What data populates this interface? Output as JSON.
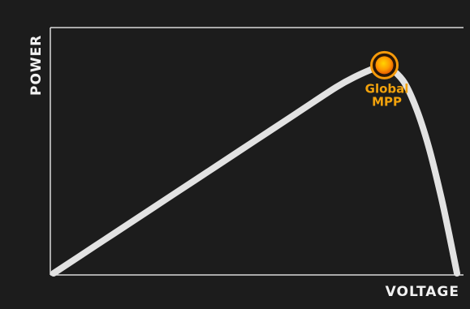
{
  "chart_data": {
    "type": "line",
    "title": "",
    "xlabel": "VOLTAGE",
    "ylabel": "POWER",
    "xlim": [
      0,
      1
    ],
    "ylim": [
      0,
      1
    ],
    "grid": false,
    "series": [
      {
        "x": [
          0.0,
          0.1,
          0.2,
          0.3,
          0.4,
          0.5,
          0.6,
          0.7,
          0.75,
          0.8,
          0.82,
          0.84,
          0.87,
          0.9,
          0.93,
          0.96,
          0.98,
          1.0
        ],
        "y": [
          0.0,
          0.12,
          0.24,
          0.36,
          0.48,
          0.6,
          0.72,
          0.84,
          0.89,
          0.93,
          0.94,
          0.92,
          0.86,
          0.74,
          0.57,
          0.35,
          0.18,
          0.0
        ]
      }
    ],
    "annotations": [
      {
        "label": "Global MPP",
        "lines": [
          "Global",
          "MPP"
        ],
        "x": 0.82,
        "y": 0.94,
        "marker_color": "#f59a0b"
      }
    ]
  }
}
